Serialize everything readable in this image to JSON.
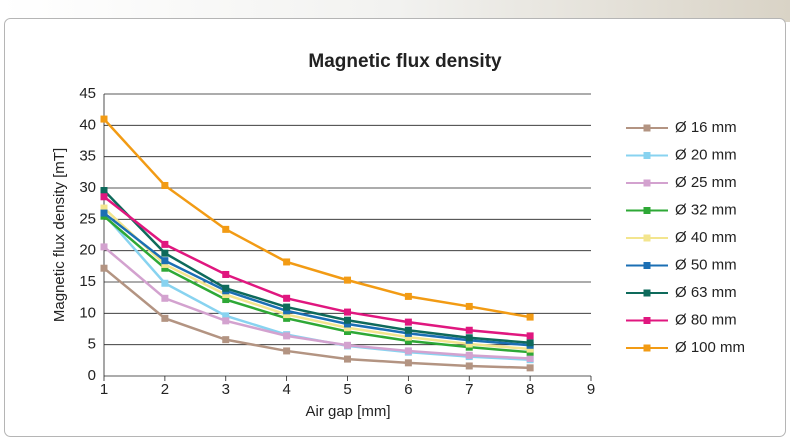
{
  "chart_data": {
    "type": "line",
    "title": "Magnetic flux density",
    "x_label": "Air gap [mm]",
    "y_label": "Magnetic flux density [mT]",
    "x": [
      1,
      2,
      3,
      4,
      5,
      6,
      7,
      8
    ],
    "xlim": [
      1,
      9
    ],
    "xticks": [
      1,
      2,
      3,
      4,
      5,
      6,
      7,
      8,
      9
    ],
    "ylim": [
      0,
      45
    ],
    "yticks": [
      0,
      5,
      10,
      15,
      20,
      25,
      30,
      35,
      40,
      45
    ],
    "grid": true,
    "legend": "right",
    "series": [
      {
        "name": "Ø 16 mm",
        "color": "#b39482",
        "values": [
          17.2,
          9.2,
          5.8,
          4.0,
          2.7,
          2.1,
          1.6,
          1.3
        ]
      },
      {
        "name": "Ø 20 mm",
        "color": "#88d3f0",
        "values": [
          25.8,
          14.8,
          9.6,
          6.6,
          4.8,
          3.8,
          3.1,
          2.6
        ]
      },
      {
        "name": "Ø 25 mm",
        "color": "#d3a2cf",
        "values": [
          20.6,
          12.4,
          8.8,
          6.4,
          4.9,
          4.0,
          3.3,
          2.8
        ]
      },
      {
        "name": "Ø 32 mm",
        "color": "#2ea836",
        "values": [
          25.5,
          17.2,
          12.2,
          9.2,
          7.1,
          5.6,
          4.6,
          3.8
        ]
      },
      {
        "name": "Ø 40 mm",
        "color": "#f3e58e",
        "values": [
          26.8,
          17.8,
          13.0,
          9.8,
          7.7,
          6.2,
          5.1,
          4.3
        ]
      },
      {
        "name": "Ø 50 mm",
        "color": "#1b6fb4",
        "values": [
          26.0,
          18.4,
          13.6,
          10.4,
          8.3,
          6.8,
          5.7,
          4.9
        ]
      },
      {
        "name": "Ø 63 mm",
        "color": "#0e6a5b",
        "values": [
          29.6,
          19.6,
          14.0,
          11.0,
          8.9,
          7.3,
          6.1,
          5.3
        ]
      },
      {
        "name": "Ø 80 mm",
        "color": "#e0177f",
        "values": [
          28.6,
          21.0,
          16.2,
          12.4,
          10.2,
          8.6,
          7.3,
          6.4
        ]
      },
      {
        "name": "Ø 100 mm",
        "color": "#f29b14",
        "values": [
          41.0,
          30.4,
          23.4,
          18.2,
          15.3,
          12.7,
          11.1,
          9.4
        ]
      }
    ]
  }
}
